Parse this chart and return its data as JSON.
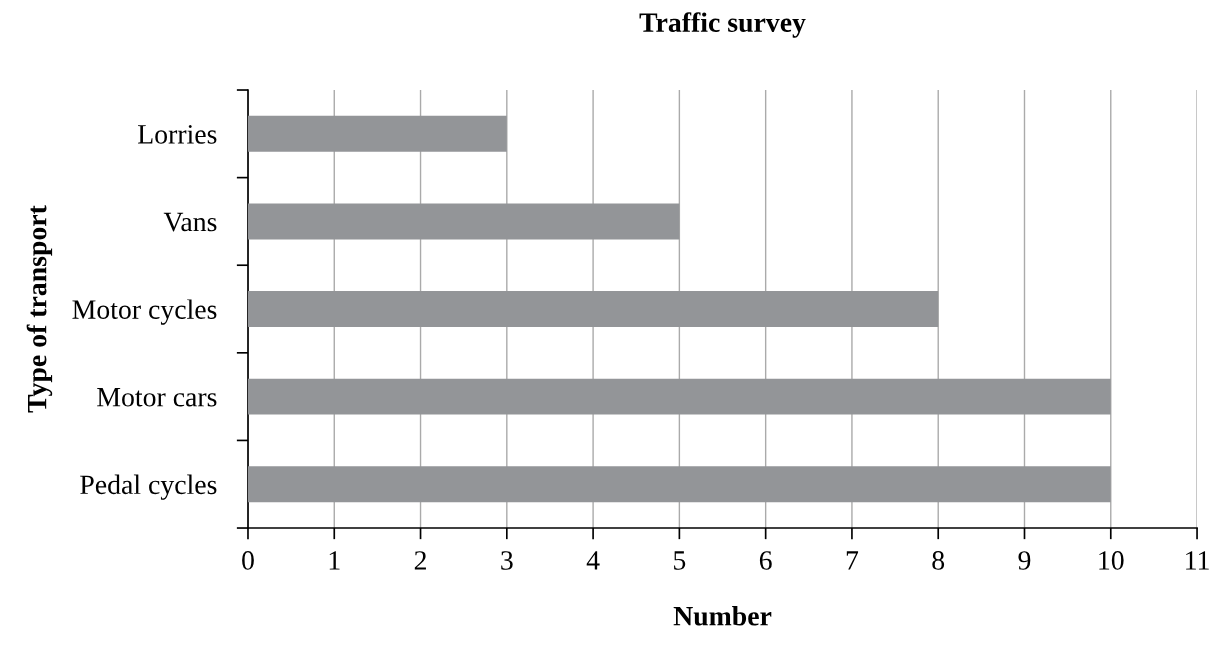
{
  "chart_data": {
    "type": "bar",
    "orientation": "horizontal",
    "title": "Traffic survey",
    "xlabel": "Number",
    "ylabel": "Type of transport",
    "categories": [
      "Lorries",
      "Vans",
      "Motor cycles",
      "Motor cars",
      "Pedal cycles"
    ],
    "values": [
      3,
      5,
      8,
      10,
      10
    ],
    "color": "#939598",
    "xlim": [
      0,
      11
    ],
    "xticks": [
      0,
      1,
      2,
      3,
      4,
      5,
      6,
      7,
      8,
      9,
      10,
      11
    ],
    "grid": "x",
    "legend": false
  }
}
